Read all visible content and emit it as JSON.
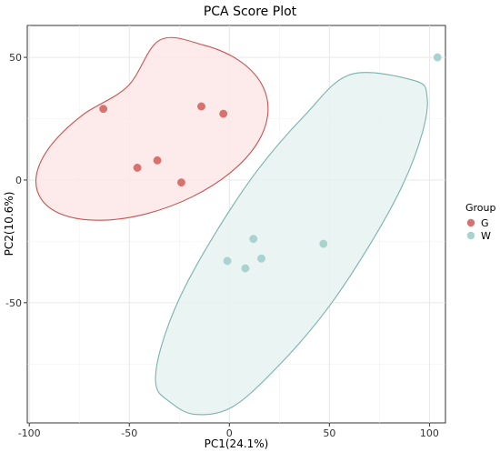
{
  "chart_data": {
    "type": "scatter",
    "title": "PCA Score Plot",
    "xlabel": "PC1(24.1%)",
    "ylabel": "PC2(10.6%)",
    "xlim": [
      -101,
      108
    ],
    "ylim": [
      -99,
      63
    ],
    "x_ticks": [
      -100,
      -50,
      0,
      50,
      100
    ],
    "y_ticks": [
      -50,
      0,
      50
    ],
    "x_tick_labels": [
      "-100",
      "-50",
      "0",
      "50",
      "100"
    ],
    "y_tick_labels": [
      "-50",
      "0",
      "50"
    ],
    "grid": true,
    "legend": {
      "title": "Group",
      "position": "right"
    },
    "series": [
      {
        "name": "G",
        "color": "#d9726f",
        "ellipse_color": "#c8524f",
        "ellipse_fill": "#fde6e6",
        "points": [
          {
            "x": -63,
            "y": 29
          },
          {
            "x": -14,
            "y": 30
          },
          {
            "x": -3,
            "y": 27
          },
          {
            "x": -46,
            "y": 5
          },
          {
            "x": -36,
            "y": 8
          },
          {
            "x": -24,
            "y": -1
          }
        ],
        "ellipse": [
          {
            "x": -34.9,
            "y": 57
          },
          {
            "x": -13.3,
            "y": 55.1
          },
          {
            "x": 4.5,
            "y": 48.9
          },
          {
            "x": 15.9,
            "y": 39.4
          },
          {
            "x": 19.3,
            "y": 27.7
          },
          {
            "x": 14.1,
            "y": 15.2
          },
          {
            "x": 0.8,
            "y": 3.2
          },
          {
            "x": -18.7,
            "y": -6.9
          },
          {
            "x": -41.6,
            "y": -13.8
          },
          {
            "x": -64,
            "y": -16.4
          },
          {
            "x": -82.4,
            "y": -14.4
          },
          {
            "x": -93.9,
            "y": -7.9
          },
          {
            "x": -96.4,
            "y": 2.1
          },
          {
            "x": -89.2,
            "y": 14.1
          },
          {
            "x": -73.2,
            "y": 26.6
          },
          {
            "x": -50.8,
            "y": 38.2
          },
          {
            "x": -34.9,
            "y": 57
          }
        ]
      },
      {
        "name": "W",
        "color": "#a9d3cf",
        "ellipse_color": "#7ab2ad",
        "ellipse_fill": "#e6f2f1",
        "points": [
          {
            "x": 104,
            "y": 50
          },
          {
            "x": 12,
            "y": -24
          },
          {
            "x": 47,
            "y": -26
          },
          {
            "x": 16,
            "y": -32
          },
          {
            "x": -1,
            "y": -33
          },
          {
            "x": 8,
            "y": -36
          }
        ],
        "ellipse": [
          {
            "x": 92.6,
            "y": 40.5
          },
          {
            "x": 98.8,
            "y": 34
          },
          {
            "x": 96.5,
            "y": 19.4
          },
          {
            "x": 86.5,
            "y": -2.2
          },
          {
            "x": 69.5,
            "y": -27.3
          },
          {
            "x": 48.3,
            "y": -53.2
          },
          {
            "x": 24.5,
            "y": -75.8
          },
          {
            "x": 1.5,
            "y": -92.5
          },
          {
            "x": -17.5,
            "y": -95.5
          },
          {
            "x": -30.5,
            "y": -90
          },
          {
            "x": -36.7,
            "y": -83.5
          },
          {
            "x": -34.4,
            "y": -68.9
          },
          {
            "x": -24.4,
            "y": -47.3
          },
          {
            "x": -7.4,
            "y": -22.2
          },
          {
            "x": 13.8,
            "y": 3.7
          },
          {
            "x": 37.6,
            "y": 26.3
          },
          {
            "x": 60.5,
            "y": 43
          },
          {
            "x": 92.6,
            "y": 40.5
          }
        ]
      }
    ]
  }
}
